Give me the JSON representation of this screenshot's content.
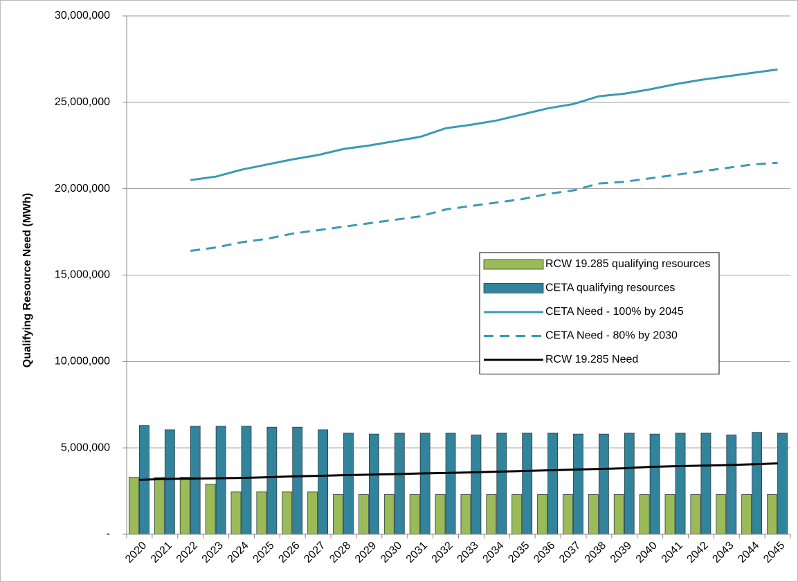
{
  "chart_data": {
    "type": "bar",
    "y_label": "Qualifying Resource Need  (MWh)",
    "categories": [
      "2020",
      "2021",
      "2022",
      "2023",
      "2024",
      "2025",
      "2026",
      "2027",
      "2028",
      "2029",
      "2030",
      "2031",
      "2032",
      "2033",
      "2034",
      "2035",
      "2036",
      "2037",
      "2038",
      "2039",
      "2040",
      "2041",
      "2042",
      "2043",
      "2044",
      "2045"
    ],
    "ylim": [
      0,
      30000000
    ],
    "yticks": [
      {
        "value": 0,
        "label": "-"
      },
      {
        "value": 5000000,
        "label": "5,000,000"
      },
      {
        "value": 10000000,
        "label": "10,000,000"
      },
      {
        "value": 15000000,
        "label": "15,000,000"
      },
      {
        "value": 20000000,
        "label": "20,000,000"
      },
      {
        "value": 25000000,
        "label": "25,000,000"
      },
      {
        "value": 30000000,
        "label": "30,000,000"
      }
    ],
    "grid": true,
    "legend": "right",
    "series": [
      {
        "name": "RCW 19.285 qualifying resources",
        "type": "bar",
        "color": "#9bbb59",
        "values": [
          3300000,
          3300000,
          3300000,
          2900000,
          2450000,
          2450000,
          2450000,
          2450000,
          2300000,
          2300000,
          2300000,
          2300000,
          2300000,
          2300000,
          2300000,
          2300000,
          2300000,
          2300000,
          2300000,
          2300000,
          2300000,
          2300000,
          2300000,
          2300000,
          2300000,
          2300000
        ]
      },
      {
        "name": "CETA qualifying resources",
        "type": "bar",
        "color": "#31849b",
        "values": [
          6300000,
          6050000,
          6250000,
          6250000,
          6250000,
          6200000,
          6200000,
          6050000,
          5850000,
          5800000,
          5850000,
          5850000,
          5850000,
          5750000,
          5850000,
          5850000,
          5850000,
          5800000,
          5800000,
          5850000,
          5800000,
          5850000,
          5850000,
          5750000,
          5900000,
          5850000
        ]
      },
      {
        "name": "CETA Need - 100% by 2045",
        "type": "line",
        "style": "solid",
        "color": "#3b9ab5",
        "values": [
          null,
          null,
          20500000,
          20700000,
          21100000,
          21400000,
          21700000,
          21950000,
          22300000,
          22500000,
          22750000,
          23000000,
          23500000,
          23700000,
          23950000,
          24300000,
          24650000,
          24900000,
          25350000,
          25500000,
          25750000,
          26050000,
          26300000,
          26500000,
          26700000,
          26900000
        ]
      },
      {
        "name": "CETA Need - 80% by 2030",
        "type": "line",
        "style": "dashed",
        "color": "#3b9ab5",
        "values": [
          null,
          null,
          16400000,
          16600000,
          16900000,
          17100000,
          17400000,
          17600000,
          17800000,
          18000000,
          18200000,
          18400000,
          18800000,
          19000000,
          19200000,
          19400000,
          19700000,
          19900000,
          20300000,
          20400000,
          20600000,
          20800000,
          21000000,
          21200000,
          21400000,
          21500000
        ]
      },
      {
        "name": "RCW 19.285 Need",
        "type": "line",
        "style": "solid",
        "color": "#000000",
        "values": [
          3150000,
          3200000,
          3220000,
          3240000,
          3260000,
          3300000,
          3350000,
          3380000,
          3420000,
          3450000,
          3480000,
          3520000,
          3550000,
          3580000,
          3620000,
          3660000,
          3700000,
          3740000,
          3780000,
          3820000,
          3900000,
          3940000,
          3970000,
          4000000,
          4050000,
          4100000
        ]
      }
    ]
  }
}
